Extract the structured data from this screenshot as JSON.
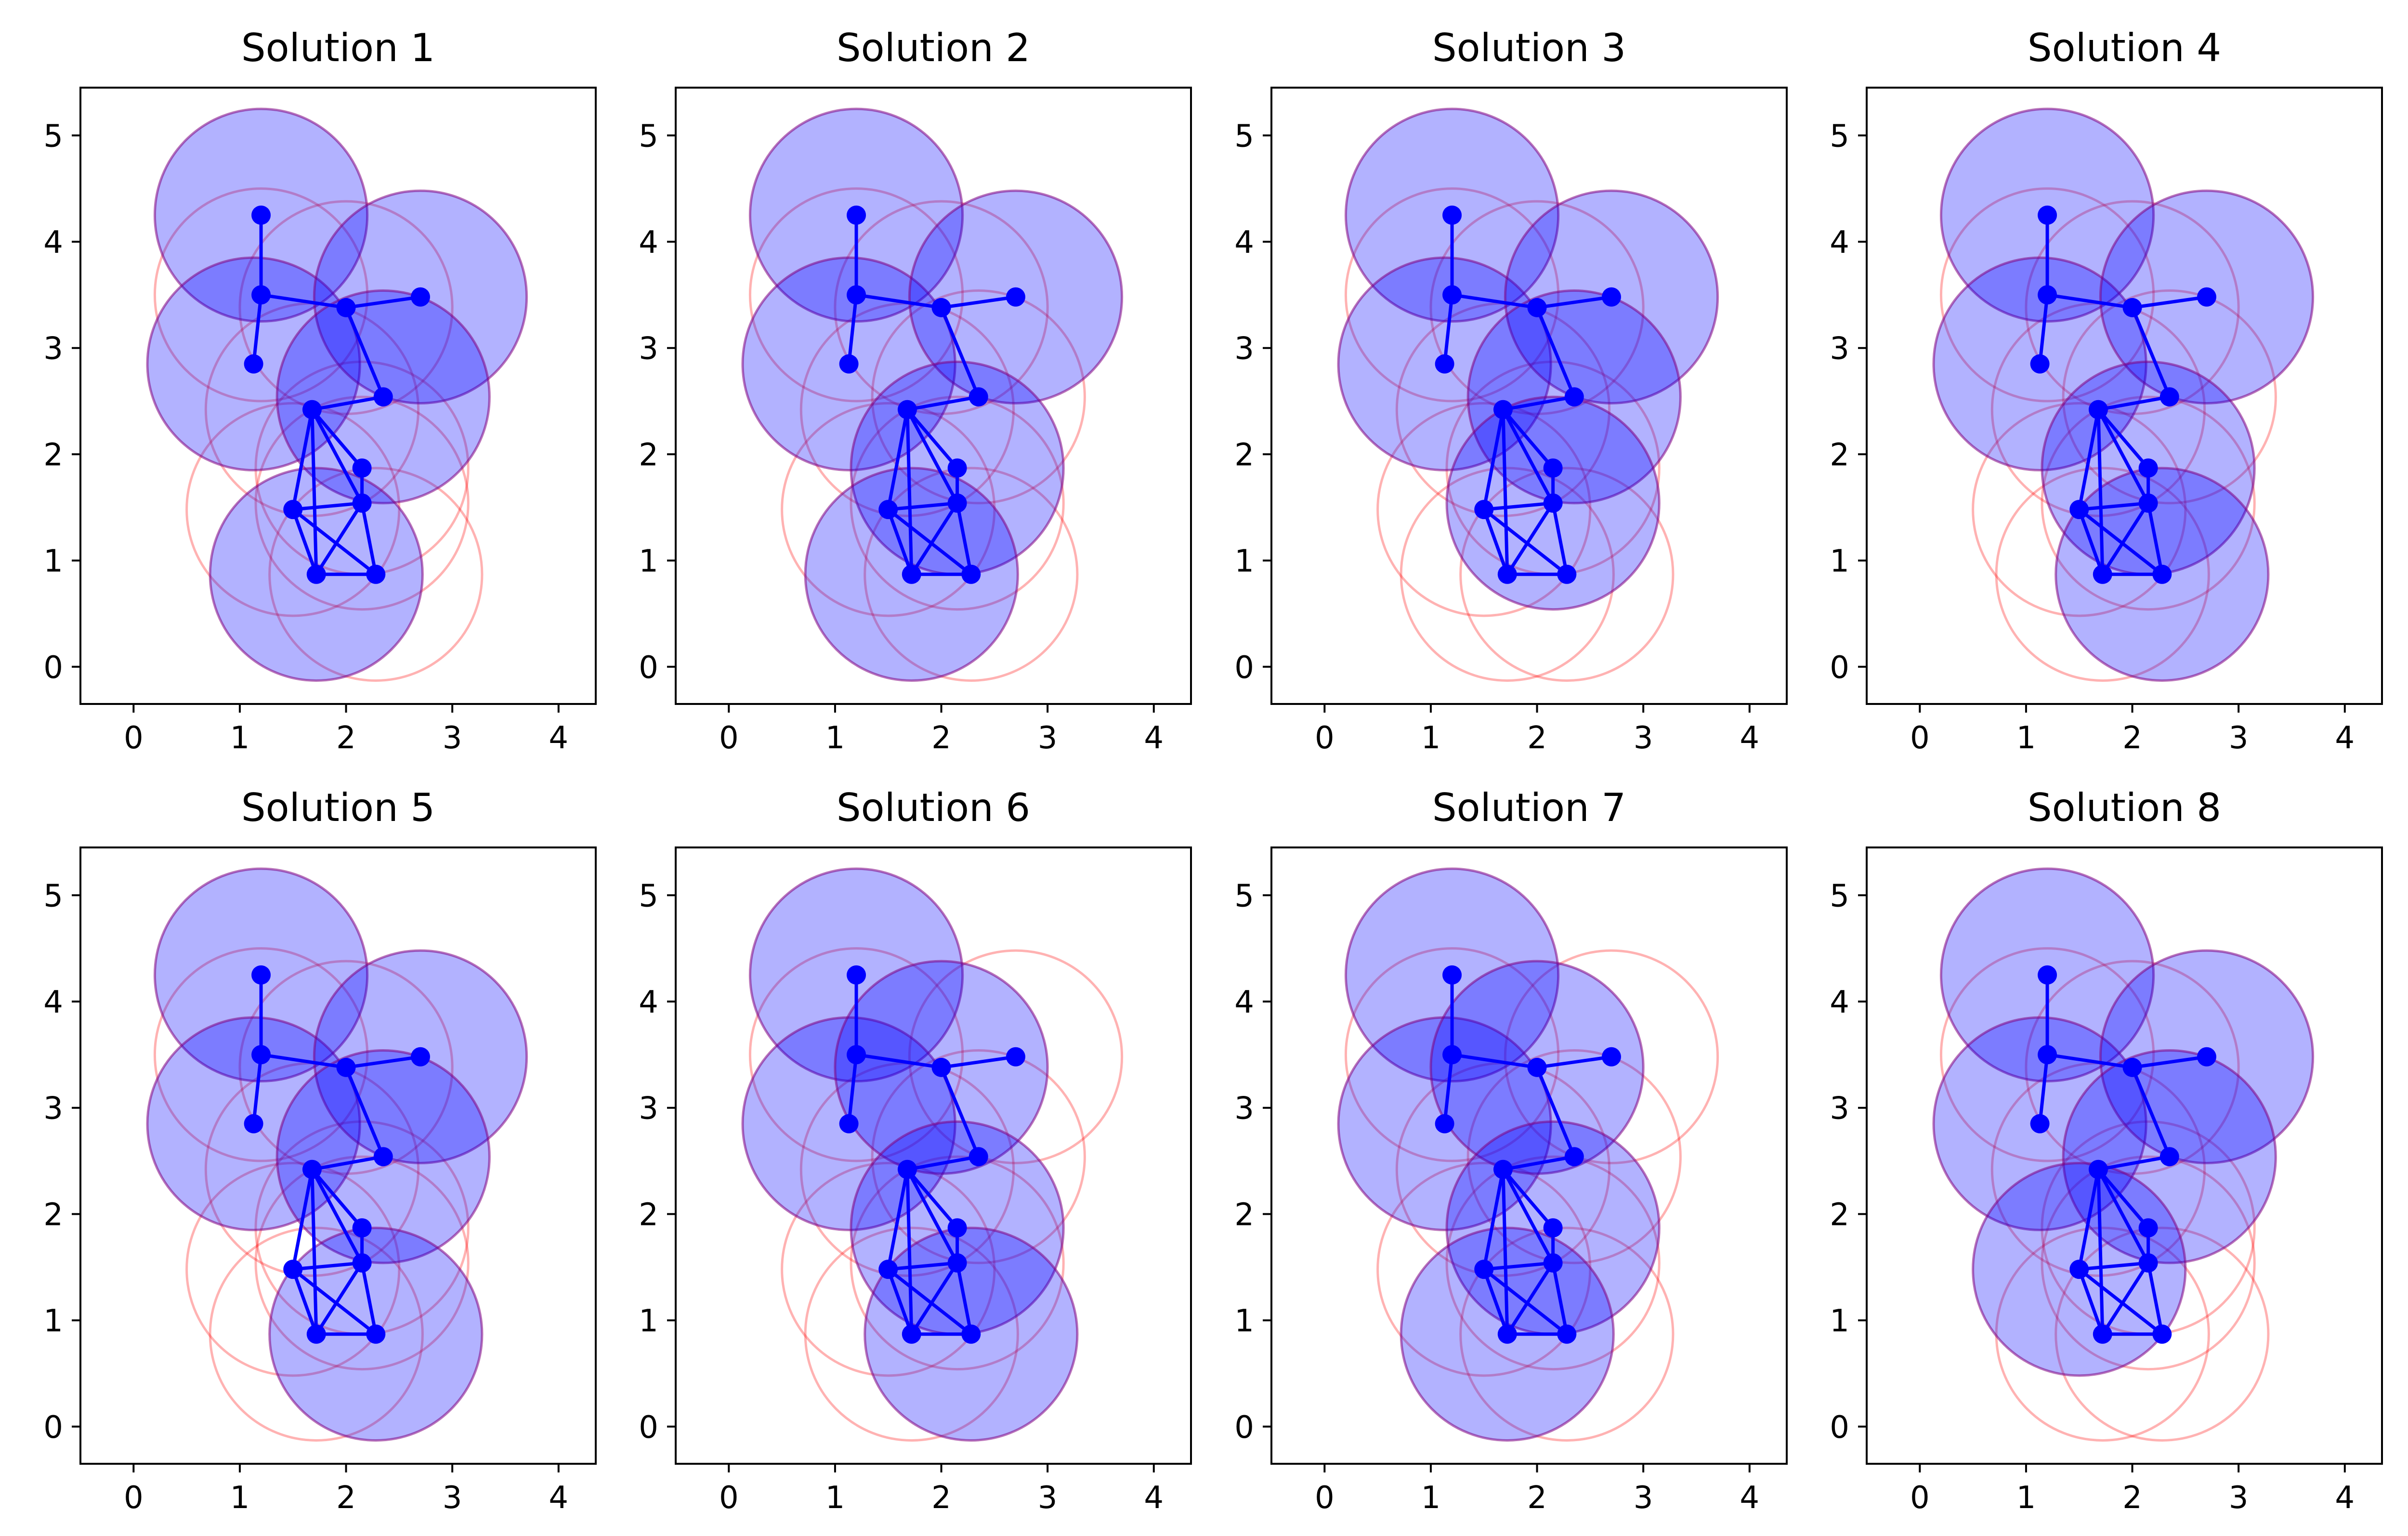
{
  "chart_data": {
    "type": "scatter",
    "description_free": true,
    "colors": {
      "node": "#0000ff",
      "edge": "#0000ff",
      "selected_fill": "#0000ff",
      "selected_fill_opacity": 0.3,
      "selected_edge": "#800080",
      "unselected_edge": "#ff0000",
      "unselected_edge_opacity": 0.3
    },
    "xlim": [
      -0.5,
      4.35
    ],
    "ylim": [
      -0.35,
      5.45
    ],
    "xticks": [
      "0",
      "1",
      "2",
      "3",
      "4"
    ],
    "yticks": [
      "0",
      "1",
      "2",
      "3",
      "4",
      "5"
    ],
    "circle_radius": 1.0,
    "nodes": [
      {
        "id": 0,
        "x": 1.2,
        "y": 4.25
      },
      {
        "id": 1,
        "x": 1.2,
        "y": 3.5
      },
      {
        "id": 2,
        "x": 1.13,
        "y": 2.85
      },
      {
        "id": 3,
        "x": 2.0,
        "y": 3.38
      },
      {
        "id": 4,
        "x": 2.7,
        "y": 3.48
      },
      {
        "id": 5,
        "x": 1.68,
        "y": 2.42
      },
      {
        "id": 6,
        "x": 2.35,
        "y": 2.54
      },
      {
        "id": 7,
        "x": 2.15,
        "y": 1.87
      },
      {
        "id": 8,
        "x": 1.5,
        "y": 1.48
      },
      {
        "id": 9,
        "x": 2.15,
        "y": 1.54
      },
      {
        "id": 10,
        "x": 1.72,
        "y": 0.87
      },
      {
        "id": 11,
        "x": 2.28,
        "y": 0.87
      }
    ],
    "edges": [
      [
        0,
        1
      ],
      [
        1,
        2
      ],
      [
        1,
        3
      ],
      [
        3,
        4
      ],
      [
        3,
        6
      ],
      [
        6,
        5
      ],
      [
        5,
        8
      ],
      [
        5,
        7
      ],
      [
        5,
        9
      ],
      [
        5,
        10
      ],
      [
        7,
        9
      ],
      [
        8,
        9
      ],
      [
        8,
        10
      ],
      [
        8,
        11
      ],
      [
        9,
        10
      ],
      [
        9,
        11
      ],
      [
        10,
        11
      ]
    ],
    "solutions": [
      {
        "title": "Solution 1",
        "selected": [
          0,
          2,
          4,
          6,
          10
        ]
      },
      {
        "title": "Solution 2",
        "selected": [
          0,
          2,
          4,
          7,
          10
        ]
      },
      {
        "title": "Solution 3",
        "selected": [
          0,
          2,
          4,
          6,
          9
        ]
      },
      {
        "title": "Solution 4",
        "selected": [
          0,
          2,
          4,
          7,
          11
        ]
      },
      {
        "title": "Solution 5",
        "selected": [
          0,
          2,
          4,
          6,
          11
        ]
      },
      {
        "title": "Solution 6",
        "selected": [
          0,
          2,
          3,
          7,
          11
        ]
      },
      {
        "title": "Solution 7",
        "selected": [
          0,
          2,
          3,
          7,
          10
        ]
      },
      {
        "title": "Solution 8",
        "selected": [
          0,
          2,
          4,
          6,
          8
        ]
      }
    ]
  }
}
